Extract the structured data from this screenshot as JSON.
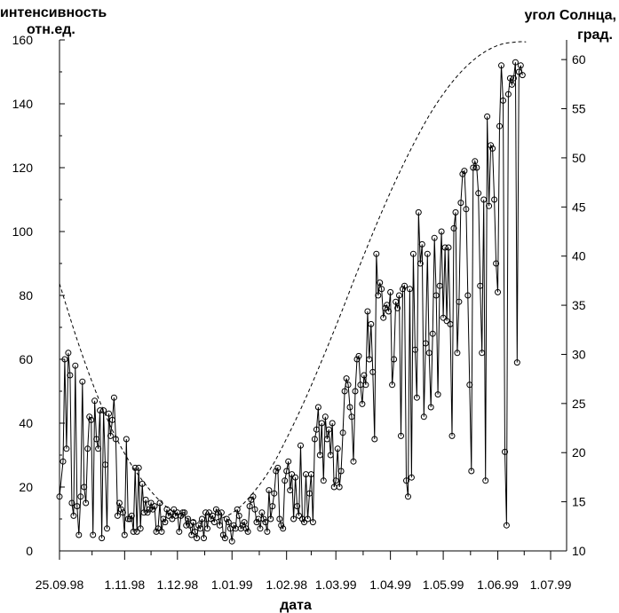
{
  "chart_data": {
    "type": "line",
    "title": "",
    "xlabel": "дата",
    "ylabel_left": [
      "интенсивность",
      "отн.ед."
    ],
    "ylabel_right": [
      "угол Солнца,",
      "град."
    ],
    "x_tick_labels": [
      "25.09.98",
      "1.11.98",
      "1.12.98",
      "1.01.99",
      "1.02.98",
      "1.03.99",
      "1.04.99",
      "1.05.99",
      "1.06.99",
      "1.07.99"
    ],
    "x_tick_days": [
      0,
      37,
      67,
      98,
      129,
      157,
      188,
      218,
      249,
      279
    ],
    "x_range_days": [
      0,
      279
    ],
    "ylim_left": [
      0,
      160
    ],
    "y_left_ticks": [
      0,
      20,
      40,
      60,
      80,
      100,
      120,
      140,
      160
    ],
    "ylim_right": [
      10,
      62
    ],
    "y_right_ticks": [
      10,
      15,
      20,
      25,
      30,
      35,
      40,
      45,
      50,
      55,
      60
    ],
    "grid": false,
    "legend": "none",
    "series": [
      {
        "style": "solid line with open circle markers",
        "color": "#000000",
        "axis": "left",
        "points": [
          [
            0,
            17
          ],
          [
            2,
            28
          ],
          [
            3,
            60
          ],
          [
            4,
            32
          ],
          [
            5,
            62
          ],
          [
            6,
            55
          ],
          [
            7,
            15
          ],
          [
            8,
            11
          ],
          [
            9,
            58
          ],
          [
            10,
            14
          ],
          [
            11,
            5
          ],
          [
            12,
            17
          ],
          [
            13,
            53
          ],
          [
            14,
            20
          ],
          [
            15,
            15
          ],
          [
            16,
            32
          ],
          [
            17,
            42
          ],
          [
            18,
            41
          ],
          [
            19,
            5
          ],
          [
            20,
            47
          ],
          [
            21,
            35
          ],
          [
            22,
            32
          ],
          [
            23,
            44
          ],
          [
            24,
            4
          ],
          [
            25,
            44
          ],
          [
            26,
            27
          ],
          [
            27,
            7
          ],
          [
            28,
            43
          ],
          [
            29,
            36
          ],
          [
            30,
            41
          ],
          [
            31,
            48
          ],
          [
            32,
            35
          ],
          [
            33,
            11
          ],
          [
            34,
            15
          ],
          [
            35,
            13
          ],
          [
            36,
            12
          ],
          [
            37,
            5
          ],
          [
            38,
            35
          ],
          [
            39,
            10
          ],
          [
            40,
            10
          ],
          [
            41,
            11
          ],
          [
            42,
            6
          ],
          [
            43,
            26
          ],
          [
            44,
            6
          ],
          [
            45,
            26
          ],
          [
            46,
            7
          ],
          [
            47,
            21
          ],
          [
            48,
            12
          ],
          [
            49,
            16
          ],
          [
            50,
            12
          ],
          [
            51,
            13
          ],
          [
            52,
            15
          ],
          [
            53,
            13
          ],
          [
            54,
            14
          ],
          [
            55,
            6
          ],
          [
            56,
            7
          ],
          [
            57,
            15
          ],
          [
            58,
            6
          ],
          [
            59,
            10
          ],
          [
            60,
            9
          ],
          [
            61,
            13
          ],
          [
            62,
            11
          ],
          [
            63,
            12
          ],
          [
            64,
            10
          ],
          [
            65,
            13
          ],
          [
            66,
            11
          ],
          [
            67,
            12
          ],
          [
            68,
            6
          ],
          [
            69,
            11
          ],
          [
            70,
            12
          ],
          [
            71,
            12
          ],
          [
            72,
            8
          ],
          [
            73,
            10
          ],
          [
            74,
            8
          ],
          [
            75,
            5
          ],
          [
            76,
            9
          ],
          [
            77,
            6
          ],
          [
            78,
            4
          ],
          [
            79,
            8
          ],
          [
            80,
            7
          ],
          [
            81,
            10
          ],
          [
            82,
            4
          ],
          [
            83,
            12
          ],
          [
            84,
            7
          ],
          [
            85,
            12
          ],
          [
            86,
            10
          ],
          [
            87,
            11
          ],
          [
            88,
            9
          ],
          [
            89,
            13
          ],
          [
            90,
            12
          ],
          [
            91,
            8
          ],
          [
            92,
            12
          ],
          [
            93,
            5
          ],
          [
            94,
            4
          ],
          [
            95,
            10
          ],
          [
            96,
            9
          ],
          [
            97,
            7
          ],
          [
            98,
            3
          ],
          [
            99,
            8
          ],
          [
            100,
            7
          ],
          [
            101,
            13
          ],
          [
            102,
            11
          ],
          [
            103,
            7
          ],
          [
            104,
            8
          ],
          [
            105,
            9
          ],
          [
            106,
            7
          ],
          [
            107,
            6
          ],
          [
            108,
            14
          ],
          [
            109,
            16
          ],
          [
            110,
            17
          ],
          [
            111,
            13
          ],
          [
            112,
            9
          ],
          [
            113,
            10
          ],
          [
            114,
            7
          ],
          [
            115,
            12
          ],
          [
            116,
            10
          ],
          [
            117,
            9
          ],
          [
            118,
            6
          ],
          [
            119,
            19
          ],
          [
            120,
            10
          ],
          [
            121,
            14
          ],
          [
            122,
            18
          ],
          [
            123,
            25
          ],
          [
            124,
            26
          ],
          [
            125,
            10
          ],
          [
            126,
            8
          ],
          [
            127,
            7
          ],
          [
            128,
            22
          ],
          [
            129,
            25
          ],
          [
            130,
            28
          ],
          [
            131,
            19
          ],
          [
            132,
            24
          ],
          [
            133,
            10
          ],
          [
            134,
            23
          ],
          [
            135,
            14
          ],
          [
            136,
            11
          ],
          [
            137,
            33
          ],
          [
            138,
            10
          ],
          [
            139,
            9
          ],
          [
            140,
            24
          ],
          [
            141,
            10
          ],
          [
            142,
            18
          ],
          [
            143,
            24
          ],
          [
            144,
            9
          ],
          [
            145,
            35
          ],
          [
            146,
            38
          ],
          [
            147,
            45
          ],
          [
            148,
            30
          ],
          [
            149,
            40
          ],
          [
            150,
            22
          ],
          [
            151,
            42
          ],
          [
            152,
            35
          ],
          [
            153,
            38
          ],
          [
            154,
            30
          ],
          [
            155,
            40
          ],
          [
            156,
            20
          ],
          [
            157,
            22
          ],
          [
            158,
            32
          ],
          [
            159,
            20
          ],
          [
            160,
            25
          ],
          [
            161,
            37
          ],
          [
            162,
            50
          ],
          [
            163,
            54
          ],
          [
            164,
            52
          ],
          [
            165,
            45
          ],
          [
            166,
            42
          ],
          [
            167,
            28
          ],
          [
            168,
            50
          ],
          [
            169,
            60
          ],
          [
            170,
            61
          ],
          [
            171,
            52
          ],
          [
            172,
            46
          ],
          [
            173,
            55
          ],
          [
            174,
            52
          ],
          [
            175,
            75
          ],
          [
            176,
            60
          ],
          [
            177,
            71
          ],
          [
            178,
            56
          ],
          [
            179,
            35
          ],
          [
            180,
            93
          ],
          [
            181,
            80
          ],
          [
            182,
            84
          ],
          [
            183,
            82
          ],
          [
            184,
            73
          ],
          [
            185,
            76
          ],
          [
            186,
            77
          ],
          [
            187,
            75
          ],
          [
            188,
            81
          ],
          [
            189,
            52
          ],
          [
            190,
            60
          ],
          [
            191,
            78
          ],
          [
            192,
            76
          ],
          [
            193,
            80
          ],
          [
            194,
            36
          ],
          [
            195,
            82
          ],
          [
            196,
            83
          ],
          [
            197,
            22
          ],
          [
            198,
            17
          ],
          [
            199,
            82
          ],
          [
            200,
            23
          ],
          [
            201,
            93
          ],
          [
            202,
            63
          ],
          [
            203,
            48
          ],
          [
            204,
            106
          ],
          [
            205,
            90
          ],
          [
            206,
            96
          ],
          [
            207,
            42
          ],
          [
            208,
            65
          ],
          [
            209,
            93
          ],
          [
            210,
            62
          ],
          [
            211,
            45
          ],
          [
            212,
            68
          ],
          [
            213,
            98
          ],
          [
            214,
            80
          ],
          [
            215,
            49
          ],
          [
            216,
            83
          ],
          [
            217,
            100
          ],
          [
            218,
            73
          ],
          [
            219,
            95
          ],
          [
            220,
            72
          ],
          [
            221,
            95
          ],
          [
            222,
            71
          ],
          [
            223,
            36
          ],
          [
            224,
            101
          ],
          [
            225,
            106
          ],
          [
            226,
            62
          ],
          [
            227,
            78
          ],
          [
            228,
            109
          ],
          [
            229,
            118
          ],
          [
            230,
            119
          ],
          [
            231,
            107
          ],
          [
            232,
            80
          ],
          [
            233,
            52
          ],
          [
            234,
            25
          ],
          [
            235,
            120
          ],
          [
            236,
            122
          ],
          [
            237,
            120
          ],
          [
            238,
            112
          ],
          [
            239,
            83
          ],
          [
            240,
            62
          ],
          [
            241,
            110
          ],
          [
            242,
            22
          ],
          [
            243,
            136
          ],
          [
            244,
            108
          ],
          [
            245,
            127
          ],
          [
            246,
            126
          ],
          [
            247,
            110
          ],
          [
            248,
            90
          ],
          [
            249,
            81
          ],
          [
            250,
            133
          ],
          [
            251,
            152
          ],
          [
            252,
            141
          ],
          [
            253,
            31
          ],
          [
            254,
            8
          ],
          [
            255,
            143
          ],
          [
            256,
            148
          ],
          [
            257,
            146
          ],
          [
            258,
            148
          ],
          [
            259,
            153
          ],
          [
            260,
            59
          ],
          [
            261,
            150
          ],
          [
            262,
            152
          ],
          [
            263,
            149
          ]
        ]
      },
      {
        "name": "угол Солнца",
        "style": "dashed line",
        "color": "#000000",
        "axis": "right",
        "points": [
          [
            0,
            37.2
          ],
          [
            10,
            31.5
          ],
          [
            20,
            26.5
          ],
          [
            30,
            22.3
          ],
          [
            40,
            19.0
          ],
          [
            50,
            16.5
          ],
          [
            60,
            14.6
          ],
          [
            70,
            13.5
          ],
          [
            80,
            13.0
          ],
          [
            90,
            13.2
          ],
          [
            100,
            14.1
          ],
          [
            110,
            15.9
          ],
          [
            120,
            18.4
          ],
          [
            130,
            21.8
          ],
          [
            140,
            25.6
          ],
          [
            150,
            29.8
          ],
          [
            160,
            34.2
          ],
          [
            170,
            38.8
          ],
          [
            180,
            43.2
          ],
          [
            190,
            47.3
          ],
          [
            200,
            51.0
          ],
          [
            210,
            54.3
          ],
          [
            220,
            57.0
          ],
          [
            230,
            59.1
          ],
          [
            240,
            60.6
          ],
          [
            250,
            61.5
          ],
          [
            260,
            61.8
          ],
          [
            265,
            61.8
          ]
        ]
      }
    ]
  }
}
